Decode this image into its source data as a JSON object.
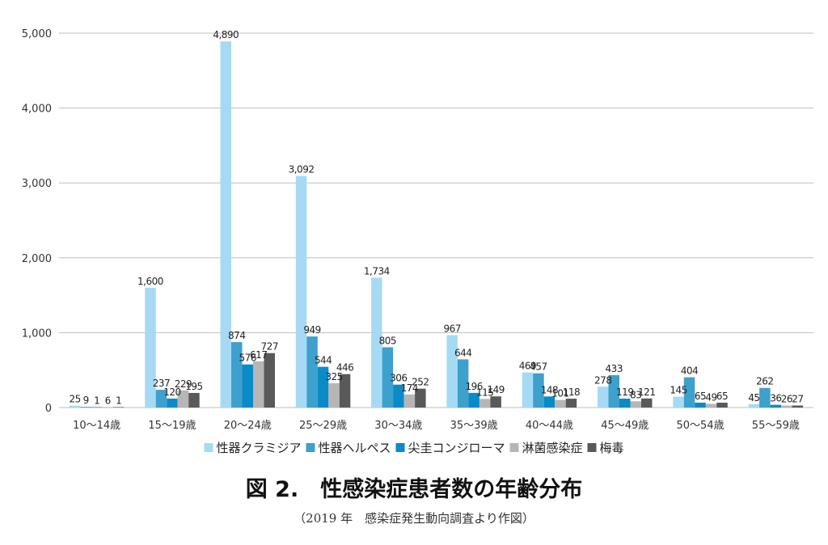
{
  "chart_data": {
    "type": "bar",
    "title": "図 2.　性感染症患者数の年齢分布",
    "subtitle": "（2019 年　感染症発生動向調査より作図）",
    "xlabel": "",
    "ylabel": "",
    "ylim": [
      0,
      5000
    ],
    "yticks": [
      0,
      1000,
      2000,
      3000,
      4000,
      5000
    ],
    "ytick_labels": [
      "0",
      "1,000",
      "2,000",
      "3,000",
      "4,000",
      "5,000"
    ],
    "grid": true,
    "legend_position": "bottom",
    "categories": [
      "10～14歳",
      "15～19歳",
      "20～24歳",
      "25～29歳",
      "30～34歳",
      "35～39歳",
      "40～44歳",
      "45～49歳",
      "50～54歳",
      "55～59歳"
    ],
    "series": [
      {
        "name": "性器クラミジア",
        "color": "#a6daf4",
        "values": [
          25,
          1600,
          4890,
          3092,
          1734,
          967,
          469,
          278,
          145,
          45
        ],
        "labels": [
          "25",
          "1,600",
          "4,890",
          "3,092",
          "1,734",
          "967",
          "469",
          "278",
          "145",
          "45"
        ]
      },
      {
        "name": "性器ヘルペス",
        "color": "#3ea0cc",
        "values": [
          9,
          237,
          874,
          949,
          805,
          644,
          457,
          433,
          404,
          262
        ],
        "labels": [
          "9",
          "237",
          "874",
          "949",
          "805",
          "644",
          "457",
          "433",
          "404",
          "262"
        ]
      },
      {
        "name": "尖圭コンジローマ",
        "color": "#0b8ac8",
        "values": [
          1,
          120,
          576,
          544,
          306,
          196,
          148,
          119,
          65,
          36
        ],
        "labels": [
          "1",
          "120",
          "576",
          "544",
          "306",
          "196",
          "148",
          "119",
          "65",
          "36"
        ]
      },
      {
        "name": "淋菌感染症",
        "color": "#b6b6b6",
        "values": [
          6,
          229,
          617,
          325,
          174,
          115,
          101,
          83,
          49,
          26
        ],
        "labels": [
          "6",
          "229",
          "617",
          "325",
          "174",
          "115",
          "101",
          "83",
          "49",
          "26"
        ]
      },
      {
        "name": "梅毒",
        "color": "#595959",
        "values": [
          1,
          195,
          727,
          446,
          252,
          149,
          118,
          121,
          65,
          27
        ],
        "labels": [
          "1",
          "195",
          "727",
          "446",
          "252",
          "149",
          "118",
          "121",
          "65",
          "27"
        ]
      }
    ]
  }
}
